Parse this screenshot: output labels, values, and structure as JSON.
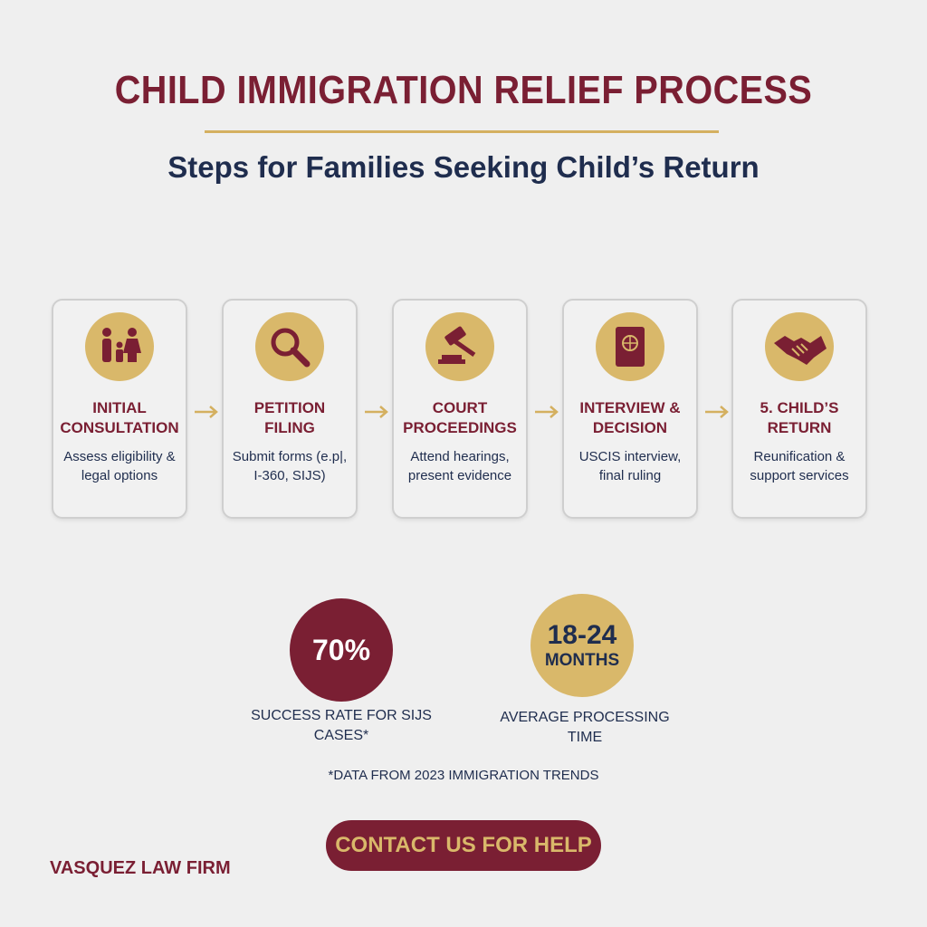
{
  "header": {
    "title": "CHILD IMMIGRATION RELIEF PROCESS",
    "subtitle": "Steps for Families Seeking Child’s Return"
  },
  "steps": [
    {
      "title": "INITIAL CONSULTATION",
      "description": "Assess eligibility & legal options"
    },
    {
      "title": "PETITION FILING",
      "description": "Submit forms (e.p|, I-360, SIJS)"
    },
    {
      "title": "COURT PROCEEDINGS",
      "description": "Attend hearings, present evidence"
    },
    {
      "title": "INTERVIEW & DECISION",
      "description": "USCIS interview, final ruling"
    },
    {
      "title": "5. CHILD’S RETURN",
      "description": "Reunification & support services"
    }
  ],
  "stats": [
    {
      "value": "70%",
      "label": "SUCCESS RATE FOR SIJS CASES*"
    },
    {
      "value": "18-24",
      "unit": "MONTHS",
      "label": "AVERAGE PROCESSING TIME"
    }
  ],
  "footnote": "*DATA FROM 2023 IMMIGRATION TRENDS",
  "button": "CONTACT US FOR HELP",
  "firm": "VASQUEZ LAW FIRM"
}
